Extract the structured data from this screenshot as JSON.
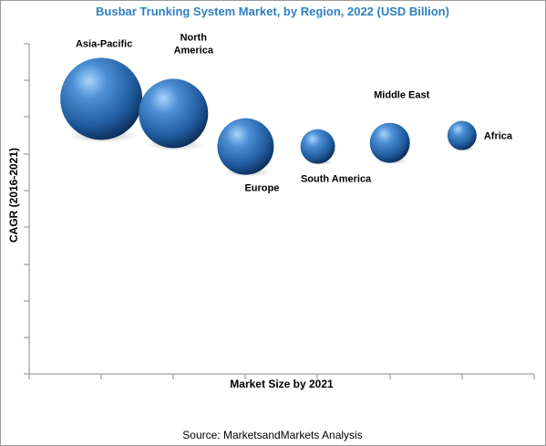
{
  "chart_data": {
    "type": "bubble",
    "title": "Busbar Trunking System Market, by Region, 2022 (USD Billion)",
    "xlabel": "Market Size by 2021",
    "ylabel": "CAGR (2016-2021)",
    "source": "Source: MarketsandMarkets Analysis",
    "grid": false,
    "series": [
      {
        "name": "Asia-Pacific",
        "x": 1,
        "y": 7.5,
        "size": 45
      },
      {
        "name": "North America",
        "x": 2,
        "y": 7.1,
        "size": 38
      },
      {
        "name": "Europe",
        "x": 3,
        "y": 6.2,
        "size": 31
      },
      {
        "name": "South America",
        "x": 4,
        "y": 6.2,
        "size": 19
      },
      {
        "name": "Middle East",
        "x": 5,
        "y": 6.3,
        "size": 22
      },
      {
        "name": "Africa",
        "x": 6,
        "y": 6.5,
        "size": 16
      }
    ],
    "colors": {
      "bubble_light": "#8ec3f2",
      "bubble_mid": "#2f6fb5",
      "bubble_dark": "#0d2f5c",
      "title": "#2e7fc2"
    }
  }
}
